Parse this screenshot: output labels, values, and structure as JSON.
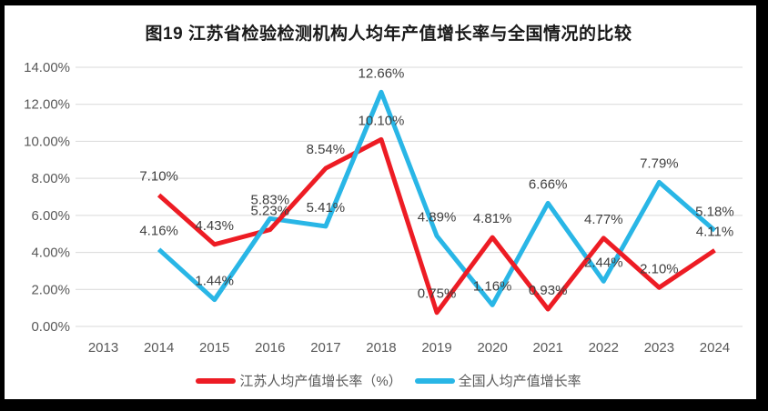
{
  "title": "图19 江苏省检验检测机构人均年产值增长率与全国情况的比较",
  "legend": [
    {
      "label": "江苏人均产值增长率（%）",
      "color": "#ed1c24"
    },
    {
      "label": "全国人均产值增长率",
      "color": "#29b6e6"
    }
  ],
  "chart_data": {
    "type": "line",
    "title": "图19 江苏省检验检测机构人均年产值增长率与全国情况的比较",
    "categories": [
      "2013",
      "2014",
      "2015",
      "2016",
      "2017",
      "2018",
      "2019",
      "2020",
      "2021",
      "2022",
      "2023",
      "2024"
    ],
    "series": [
      {
        "name": "江苏人均产值增长率（%）",
        "color": "#ed1c24",
        "values": [
          null,
          7.1,
          4.43,
          5.23,
          8.54,
          10.1,
          0.75,
          4.81,
          0.93,
          4.77,
          2.1,
          4.11
        ],
        "labels": [
          "",
          "7.10%",
          "4.43%",
          "5.23%",
          "8.54%",
          "10.10%",
          "0.75%",
          "4.81%",
          "0.93%",
          "4.77%",
          "2.10%",
          "4.11%"
        ]
      },
      {
        "name": "全国人均产值增长率",
        "color": "#29b6e6",
        "values": [
          null,
          4.16,
          1.44,
          5.83,
          5.41,
          12.66,
          4.89,
          1.16,
          6.66,
          2.44,
          7.79,
          5.18
        ],
        "labels": [
          "",
          "4.16%",
          "1.44%",
          "5.83%",
          "5.41%",
          "12.66%",
          "4.89%",
          "1.16%",
          "6.66%",
          "2.44%",
          "7.79%",
          "5.18%"
        ]
      }
    ],
    "ylim": [
      0,
      14
    ],
    "ytick_step": 2,
    "ytick_labels": [
      "0.00%",
      "2.00%",
      "4.00%",
      "6.00%",
      "8.00%",
      "10.00%",
      "12.00%",
      "14.00%"
    ],
    "grid": true,
    "gridline_color": "#d9d9d9",
    "axis_text_color": "#595959",
    "data_label_color": "#3f3f3f",
    "data_labels": true,
    "legend_position": "bottom"
  }
}
